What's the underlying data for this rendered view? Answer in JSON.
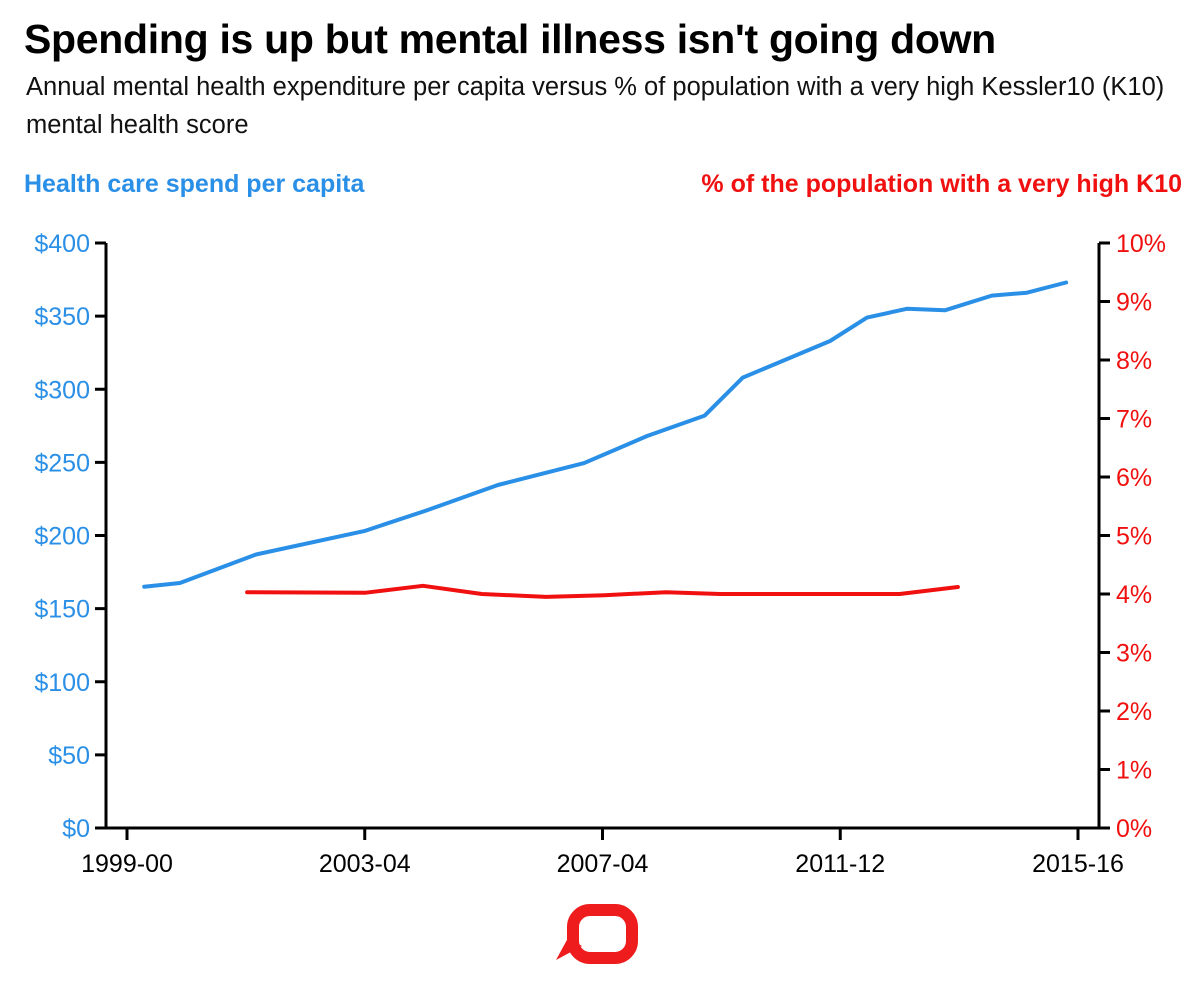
{
  "chart_data": {
    "type": "line",
    "title": "Spending is up but mental illness isn't going down",
    "subtitle": "Annual mental health expenditure per capita versus % of population with a very high Kessler10 (K10) mental health score",
    "x_tick_labels": [
      "1999-00",
      "2003-04",
      "2007-04",
      "2011-12",
      "2015-16"
    ],
    "x_tick_years": [
      1999,
      2003,
      2007,
      2011,
      2015
    ],
    "xlim": [
      1997.7,
      2015.35
    ],
    "left_axis": {
      "label": "Health care spend per capita",
      "ylim": [
        0,
        400
      ],
      "ticks": [
        0,
        50,
        100,
        150,
        200,
        250,
        300,
        350,
        400
      ],
      "tick_labels": [
        "$0",
        "$50",
        "$100",
        "$150",
        "$200",
        "$250",
        "$300",
        "$350",
        "$400"
      ],
      "color": "#2a8fe6"
    },
    "right_axis": {
      "label": "% of the population with a very high K10",
      "ylim": [
        0,
        10
      ],
      "ticks": [
        0,
        1,
        2,
        3,
        4,
        5,
        6,
        7,
        8,
        9,
        10
      ],
      "tick_labels": [
        "0%",
        "1%",
        "2%",
        "3%",
        "4%",
        "5%",
        "6%",
        "7%",
        "8%",
        "9%",
        "10%"
      ],
      "color": "#f01010"
    },
    "grid": false,
    "legend": "top",
    "series": [
      {
        "name": "Health care spend per capita",
        "axis": "left",
        "color": "#2a8fe6",
        "x": [
          1999.29,
          1999.89,
          2001.17,
          2002.99,
          2004.03,
          2005.24,
          2006.69,
          2007.75,
          2008.72,
          2009.36,
          2010.83,
          2011.45,
          2012.12,
          2012.76,
          2013.55,
          2014.14,
          2014.8
        ],
        "y": [
          165,
          167.5,
          187,
          203,
          217,
          234.5,
          249.5,
          268,
          282,
          308,
          333,
          349,
          355,
          354,
          364,
          366,
          373
        ]
      },
      {
        "name": "% of the population with a very high K10",
        "axis": "right",
        "color": "#f01010",
        "x": [
          2001.02,
          2003.0,
          2003.98,
          2004.97,
          2006.05,
          2007.03,
          2008.07,
          2008.98,
          2012.0,
          2012.98
        ],
        "y": [
          4.03,
          4.02,
          4.14,
          4.0,
          3.95,
          3.98,
          4.03,
          4.0,
          4.0,
          4.12
        ]
      }
    ]
  },
  "logo": {
    "name": "speech-bubble-logo",
    "color": "#ee1c1c"
  }
}
